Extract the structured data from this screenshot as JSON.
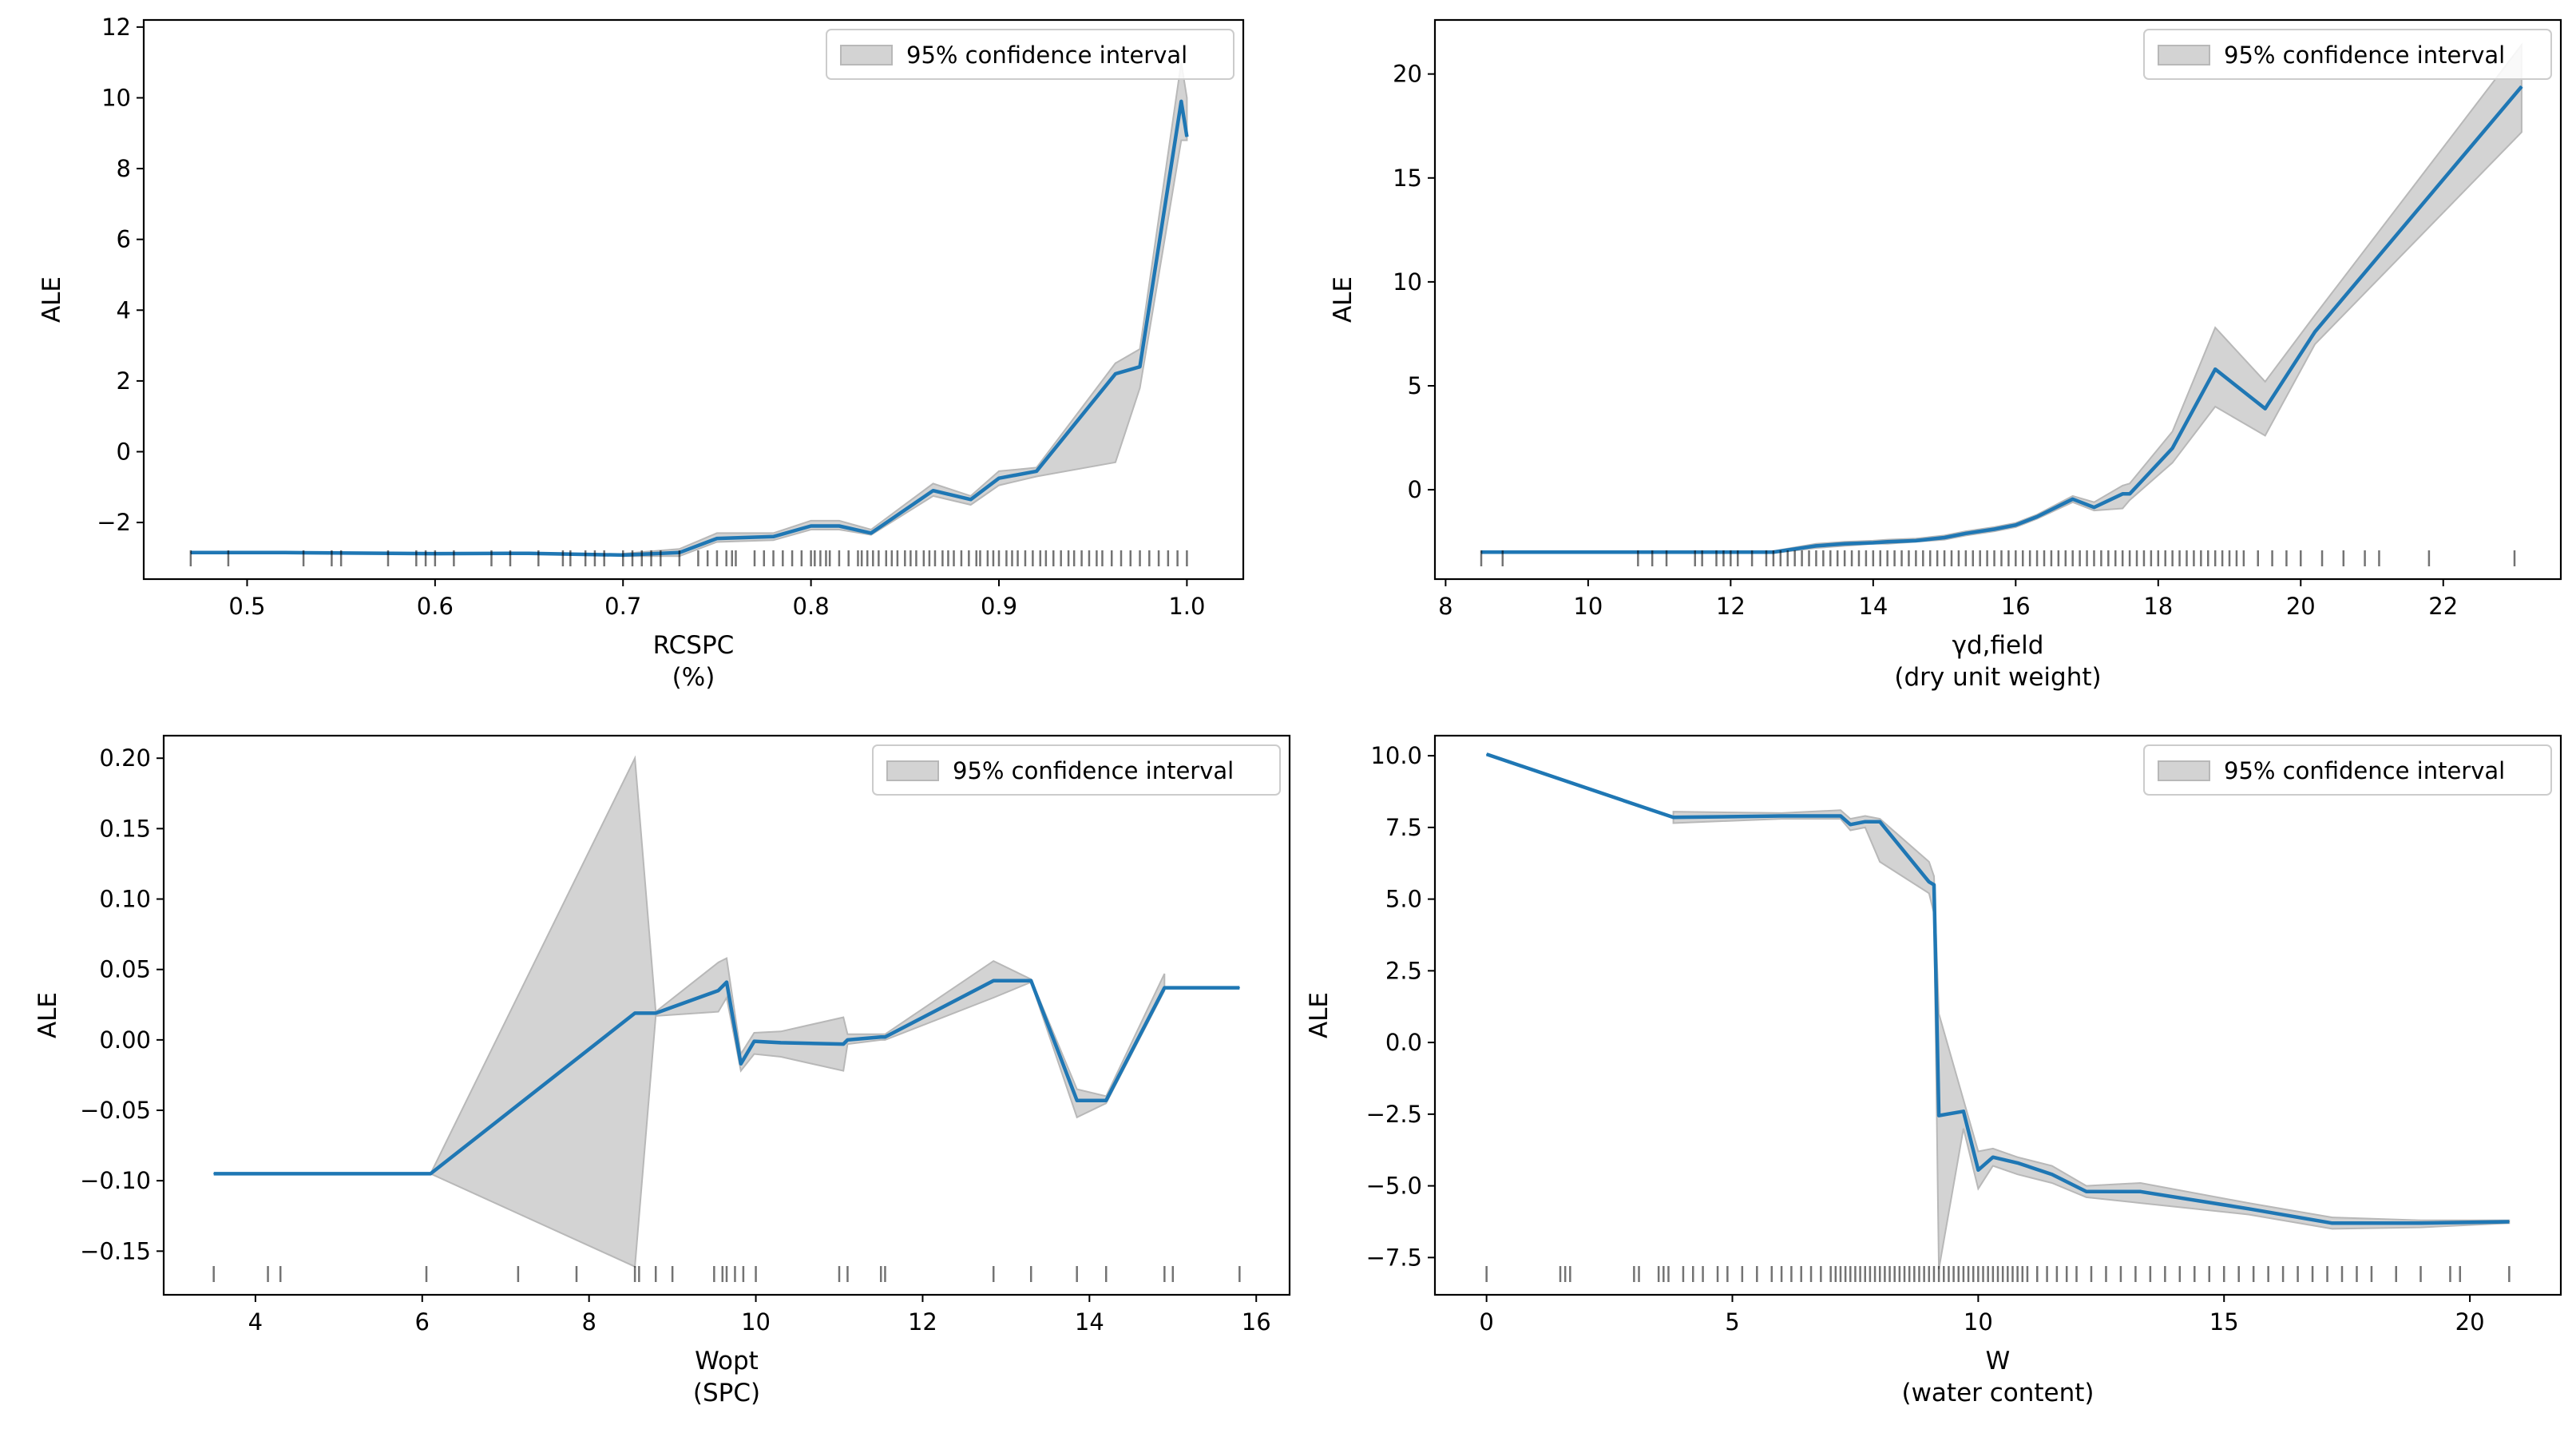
{
  "figure": {
    "background": "#ffffff",
    "line_color": "#1f77b4",
    "ci_color": "#d3d3d3",
    "rug_color": "#000000"
  },
  "chart_data": [
    {
      "type": "line",
      "panel": "top-left",
      "xlabel": "RCSPC",
      "xlabel_unit": "(%)",
      "ylabel": "ALE",
      "xlim": [
        0.445,
        1.03
      ],
      "ylim": [
        -3.6,
        12.2
      ],
      "xticks": [
        0.5,
        0.6,
        0.7,
        0.8,
        0.9,
        1.0
      ],
      "xtick_labels": [
        "0.5",
        "0.6",
        "0.7",
        "0.8",
        "0.9",
        "1.0"
      ],
      "yticks": [
        -2,
        0,
        2,
        4,
        6,
        8,
        10,
        12
      ],
      "ytick_labels": [
        "−2",
        "0",
        "2",
        "4",
        "6",
        "8",
        "10",
        "12"
      ],
      "legend": {
        "label": "95% confidence interval",
        "position": "top-right"
      },
      "series": [
        {
          "name": "ALE",
          "x": [
            0.47,
            0.52,
            0.6,
            0.65,
            0.7,
            0.73,
            0.75,
            0.78,
            0.8,
            0.815,
            0.832,
            0.865,
            0.885,
            0.9,
            0.92,
            0.962,
            0.975,
            0.997,
            1.0
          ],
          "y": [
            -2.85,
            -2.85,
            -2.88,
            -2.87,
            -2.92,
            -2.85,
            -2.45,
            -2.4,
            -2.1,
            -2.1,
            -2.3,
            -1.1,
            -1.35,
            -0.75,
            -0.55,
            2.2,
            2.4,
            9.9,
            8.9
          ]
        }
      ],
      "ci": {
        "x": [
          0.7,
          0.73,
          0.75,
          0.78,
          0.8,
          0.815,
          0.832,
          0.865,
          0.885,
          0.9,
          0.92,
          0.962,
          0.975,
          0.997,
          1.0
        ],
        "lower": [
          -2.95,
          -2.95,
          -2.55,
          -2.5,
          -2.2,
          -2.2,
          -2.35,
          -1.25,
          -1.5,
          -0.95,
          -0.7,
          -0.3,
          1.8,
          8.8,
          8.8
        ],
        "upper": [
          -2.88,
          -2.75,
          -2.3,
          -2.3,
          -1.95,
          -1.95,
          -2.2,
          -0.9,
          -1.25,
          -0.55,
          -0.45,
          2.5,
          2.9,
          11.0,
          10.0
        ]
      },
      "rug": [
        0.47,
        0.49,
        0.53,
        0.545,
        0.55,
        0.575,
        0.59,
        0.595,
        0.6,
        0.61,
        0.63,
        0.64,
        0.655,
        0.668,
        0.672,
        0.68,
        0.685,
        0.69,
        0.7,
        0.705,
        0.71,
        0.715,
        0.72,
        0.73,
        0.74,
        0.745,
        0.75,
        0.755,
        0.758,
        0.76,
        0.77,
        0.775,
        0.78,
        0.785,
        0.79,
        0.795,
        0.8,
        0.802,
        0.805,
        0.808,
        0.81,
        0.815,
        0.82,
        0.825,
        0.827,
        0.83,
        0.833,
        0.836,
        0.84,
        0.843,
        0.846,
        0.85,
        0.853,
        0.856,
        0.86,
        0.863,
        0.866,
        0.87,
        0.873,
        0.876,
        0.88,
        0.884,
        0.888,
        0.89,
        0.894,
        0.897,
        0.9,
        0.904,
        0.907,
        0.91,
        0.914,
        0.918,
        0.922,
        0.925,
        0.929,
        0.933,
        0.937,
        0.94,
        0.944,
        0.948,
        0.952,
        0.955,
        0.96,
        0.965,
        0.97,
        0.975,
        0.98,
        0.985,
        0.99,
        0.995,
        1.0
      ]
    },
    {
      "type": "line",
      "panel": "top-right",
      "xlabel": "γd,field",
      "xlabel_unit": "(dry unit weight)",
      "ylabel": "ALE",
      "xlim": [
        7.85,
        23.65
      ],
      "ylim": [
        -4.3,
        22.6
      ],
      "xticks": [
        8,
        10,
        12,
        14,
        16,
        18,
        20,
        22
      ],
      "xtick_labels": [
        "8",
        "10",
        "12",
        "14",
        "16",
        "18",
        "20",
        "22"
      ],
      "yticks": [
        0,
        5,
        10,
        15,
        20
      ],
      "ytick_labels": [
        "0",
        "5",
        "10",
        "15",
        "20"
      ],
      "legend": {
        "label": "95% confidence interval",
        "position": "top-right"
      },
      "series": [
        {
          "name": "ALE",
          "x": [
            8.5,
            12.6,
            13.2,
            13.6,
            14.0,
            14.2,
            14.6,
            15.0,
            15.3,
            15.7,
            16.0,
            16.3,
            16.8,
            17.1,
            17.5,
            17.6,
            18.2,
            18.8,
            19.5,
            20.2,
            23.1
          ],
          "y": [
            -3.0,
            -3.0,
            -2.7,
            -2.6,
            -2.55,
            -2.5,
            -2.45,
            -2.3,
            -2.1,
            -1.9,
            -1.7,
            -1.3,
            -0.45,
            -0.85,
            -0.2,
            -0.2,
            2.0,
            5.8,
            3.9,
            7.6,
            19.4
          ]
        }
      ],
      "ci": {
        "x": [
          12.6,
          13.2,
          13.6,
          14.0,
          14.2,
          14.6,
          15.0,
          15.3,
          15.7,
          16.0,
          16.3,
          16.8,
          17.1,
          17.5,
          17.6,
          18.2,
          18.8,
          19.5,
          20.2,
          23.1
        ],
        "lower": [
          -3.05,
          -2.8,
          -2.7,
          -2.6,
          -2.6,
          -2.5,
          -2.4,
          -2.2,
          -2.0,
          -1.8,
          -1.4,
          -0.6,
          -1.0,
          -0.9,
          -0.5,
          1.3,
          4.0,
          2.6,
          7.0,
          17.2
        ],
        "upper": [
          -2.95,
          -2.6,
          -2.5,
          -2.45,
          -2.4,
          -2.35,
          -2.2,
          -2.0,
          -1.8,
          -1.6,
          -1.2,
          -0.3,
          -0.6,
          0.2,
          0.3,
          2.8,
          7.8,
          5.2,
          8.4,
          21.4
        ]
      },
      "rug": [
        8.5,
        8.8,
        10.7,
        10.9,
        11.1,
        11.5,
        11.6,
        11.8,
        11.9,
        12.0,
        12.1,
        12.3,
        12.5,
        12.6,
        12.7,
        12.8,
        12.9,
        13.0,
        13.1,
        13.2,
        13.3,
        13.4,
        13.5,
        13.6,
        13.7,
        13.8,
        13.9,
        14.0,
        14.1,
        14.2,
        14.3,
        14.4,
        14.5,
        14.6,
        14.7,
        14.8,
        14.9,
        15.0,
        15.1,
        15.2,
        15.3,
        15.4,
        15.5,
        15.6,
        15.7,
        15.8,
        15.9,
        16.0,
        16.1,
        16.2,
        16.3,
        16.4,
        16.5,
        16.6,
        16.7,
        16.8,
        16.9,
        17.0,
        17.1,
        17.2,
        17.3,
        17.4,
        17.5,
        17.6,
        17.7,
        17.8,
        17.9,
        18.0,
        18.1,
        18.2,
        18.3,
        18.4,
        18.5,
        18.6,
        18.7,
        18.8,
        18.9,
        19.0,
        19.1,
        19.2,
        19.4,
        19.6,
        19.8,
        20.0,
        20.3,
        20.6,
        20.9,
        21.1,
        21.8,
        23.0
      ]
    },
    {
      "type": "line",
      "panel": "bottom-left",
      "xlabel": "Wopt",
      "xlabel_unit": "(SPC)",
      "ylabel": "ALE",
      "xlim": [
        2.9,
        16.4
      ],
      "ylim": [
        -0.181,
        0.216
      ],
      "xticks": [
        4,
        6,
        8,
        10,
        12,
        14,
        16
      ],
      "xtick_labels": [
        "4",
        "6",
        "8",
        "10",
        "12",
        "14",
        "16"
      ],
      "yticks": [
        -0.15,
        -0.1,
        -0.05,
        0.0,
        0.05,
        0.1,
        0.15,
        0.2
      ],
      "ytick_labels": [
        "−0.15",
        "−0.10",
        "−0.05",
        "0.00",
        "0.05",
        "0.10",
        "0.15",
        "0.20"
      ],
      "legend": {
        "label": "95% confidence interval",
        "position": "top-right"
      },
      "series": [
        {
          "name": "ALE",
          "x": [
            3.5,
            6.1,
            8.55,
            8.8,
            9.55,
            9.65,
            9.82,
            9.98,
            10.3,
            11.05,
            11.1,
            11.5,
            11.55,
            12.85,
            13.3,
            13.85,
            14.2,
            14.9,
            15.8
          ],
          "y": [
            -0.095,
            -0.095,
            0.019,
            0.019,
            0.035,
            0.041,
            -0.017,
            -0.001,
            -0.002,
            -0.003,
            0.0,
            0.002,
            0.002,
            0.042,
            0.042,
            -0.043,
            -0.043,
            0.037,
            0.037
          ]
        }
      ],
      "ci": {
        "x": [
          6.1,
          8.55,
          8.8,
          9.55,
          9.65,
          9.82,
          9.98,
          10.3,
          11.05,
          11.1,
          11.5,
          11.55,
          12.85,
          13.3,
          13.85,
          14.2,
          14.9
        ],
        "lower": [
          -0.095,
          -0.161,
          0.017,
          0.02,
          0.03,
          -0.022,
          -0.01,
          -0.012,
          -0.022,
          -0.003,
          0.0,
          0.0,
          0.03,
          0.041,
          -0.055,
          -0.045,
          0.035
        ],
        "upper": [
          -0.095,
          0.2,
          0.02,
          0.055,
          0.058,
          -0.01,
          0.005,
          0.006,
          0.016,
          0.004,
          0.004,
          0.004,
          0.056,
          0.043,
          -0.035,
          -0.04,
          0.047
        ]
      },
      "rug": [
        3.5,
        4.15,
        4.3,
        6.05,
        7.15,
        7.85,
        8.55,
        8.6,
        8.8,
        9.0,
        9.5,
        9.6,
        9.65,
        9.75,
        9.85,
        10.0,
        11.0,
        11.1,
        11.5,
        11.55,
        12.85,
        13.3,
        13.85,
        14.2,
        14.9,
        15.0,
        15.8
      ]
    },
    {
      "type": "line",
      "panel": "bottom-right",
      "xlabel": "W",
      "xlabel_unit": "(water content)",
      "ylabel": "ALE",
      "xlim": [
        -1.05,
        21.85
      ],
      "ylim": [
        -8.8,
        10.7
      ],
      "xticks": [
        0,
        5,
        10,
        15,
        20
      ],
      "xtick_labels": [
        "0",
        "5",
        "10",
        "15",
        "20"
      ],
      "yticks": [
        -7.5,
        -5.0,
        -2.5,
        0.0,
        2.5,
        5.0,
        7.5,
        10.0
      ],
      "ytick_labels": [
        "−7.5",
        "−5.0",
        "−2.5",
        "0.0",
        "2.5",
        "5.0",
        "7.5",
        "10.0"
      ],
      "legend": {
        "label": "95% confidence interval",
        "position": "top-right"
      },
      "series": [
        {
          "name": "ALE",
          "x": [
            0.0,
            3.8,
            6.0,
            7.2,
            7.4,
            7.7,
            8.0,
            9.0,
            9.1,
            9.2,
            9.7,
            10.0,
            10.3,
            10.8,
            11.5,
            12.2,
            13.3,
            15.5,
            17.2,
            19.0,
            20.8
          ],
          "y": [
            10.05,
            7.85,
            7.9,
            7.9,
            7.6,
            7.7,
            7.7,
            5.6,
            5.5,
            -2.55,
            -2.4,
            -4.45,
            -4.0,
            -4.2,
            -4.6,
            -5.2,
            -5.2,
            -5.8,
            -6.3,
            -6.3,
            -6.25
          ]
        }
      ],
      "ci": {
        "x": [
          3.8,
          6.0,
          7.2,
          7.4,
          7.7,
          8.0,
          9.0,
          9.1,
          9.2,
          9.7,
          10.0,
          10.3,
          10.8,
          11.5,
          12.2,
          13.3,
          15.5,
          17.2,
          19.0,
          20.8
        ],
        "lower": [
          7.65,
          7.8,
          7.8,
          7.4,
          7.5,
          6.3,
          5.2,
          4.5,
          -7.9,
          -3.0,
          -5.1,
          -4.3,
          -4.6,
          -4.9,
          -5.4,
          -5.6,
          -6.0,
          -6.5,
          -6.45,
          -6.3
        ],
        "upper": [
          8.05,
          8.0,
          8.1,
          7.8,
          7.9,
          7.8,
          6.3,
          5.8,
          1.0,
          -2.0,
          -3.8,
          -3.7,
          -4.0,
          -4.3,
          -5.0,
          -4.9,
          -5.6,
          -6.1,
          -6.2,
          -6.2
        ]
      },
      "rug": [
        0.0,
        1.5,
        1.6,
        1.7,
        3.0,
        3.1,
        3.5,
        3.6,
        3.7,
        4.0,
        4.2,
        4.4,
        4.7,
        4.9,
        5.2,
        5.5,
        5.8,
        6.0,
        6.2,
        6.4,
        6.6,
        6.8,
        7.0,
        7.1,
        7.2,
        7.3,
        7.4,
        7.5,
        7.6,
        7.7,
        7.8,
        7.9,
        8.0,
        8.1,
        8.2,
        8.3,
        8.4,
        8.5,
        8.6,
        8.7,
        8.8,
        8.9,
        9.0,
        9.1,
        9.2,
        9.3,
        9.4,
        9.5,
        9.6,
        9.7,
        9.8,
        9.9,
        10.0,
        10.1,
        10.2,
        10.3,
        10.4,
        10.5,
        10.6,
        10.7,
        10.8,
        10.9,
        11.0,
        11.2,
        11.4,
        11.6,
        11.8,
        12.0,
        12.3,
        12.6,
        12.9,
        13.2,
        13.5,
        13.8,
        14.1,
        14.4,
        14.7,
        15.0,
        15.3,
        15.6,
        15.9,
        16.2,
        16.5,
        16.8,
        17.1,
        17.4,
        17.7,
        18.0,
        18.5,
        19.0,
        19.6,
        19.8,
        20.8
      ]
    }
  ]
}
